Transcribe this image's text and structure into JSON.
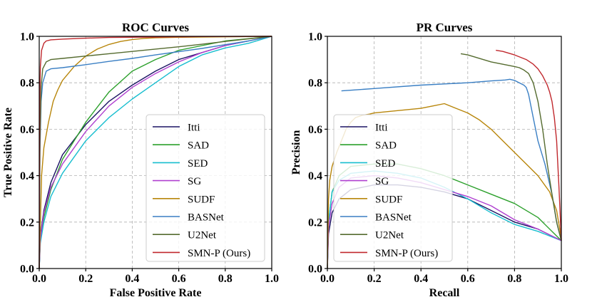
{
  "chart_data": [
    {
      "type": "line",
      "title": "ROC Curves",
      "xlabel": "False Positive Rate",
      "ylabel": "True Positive Rate",
      "xlim": [
        0,
        1
      ],
      "ylim": [
        0,
        1
      ],
      "xticks": [
        "0.0",
        "0.2",
        "0.4",
        "0.6",
        "0.8",
        "1.0"
      ],
      "yticks": [
        "0.0",
        "0.2",
        "0.4",
        "0.6",
        "0.8",
        "1.0"
      ],
      "grid": true,
      "legend_position": "lower-right",
      "series": [
        {
          "name": "Itti",
          "color": "#1b1464",
          "x": [
            0,
            0.005,
            0.02,
            0.05,
            0.1,
            0.2,
            0.3,
            0.4,
            0.5,
            0.6,
            0.7,
            0.8,
            0.9,
            1.0
          ],
          "y": [
            0,
            0.14,
            0.25,
            0.37,
            0.49,
            0.62,
            0.72,
            0.79,
            0.85,
            0.9,
            0.93,
            0.96,
            0.98,
            1.0
          ]
        },
        {
          "name": "SAD",
          "color": "#2ca02c",
          "x": [
            0,
            0.005,
            0.02,
            0.05,
            0.1,
            0.2,
            0.3,
            0.4,
            0.5,
            0.6,
            0.7,
            0.8,
            0.9,
            1.0
          ],
          "y": [
            0,
            0.13,
            0.22,
            0.34,
            0.47,
            0.63,
            0.76,
            0.85,
            0.9,
            0.94,
            0.96,
            0.98,
            0.99,
            1.0
          ]
        },
        {
          "name": "SED",
          "color": "#17becf",
          "x": [
            0,
            0.005,
            0.02,
            0.05,
            0.1,
            0.2,
            0.3,
            0.4,
            0.5,
            0.6,
            0.7,
            0.8,
            0.9,
            1.0
          ],
          "y": [
            0,
            0.11,
            0.2,
            0.31,
            0.41,
            0.55,
            0.65,
            0.73,
            0.8,
            0.87,
            0.92,
            0.95,
            0.97,
            1.0
          ]
        },
        {
          "name": "SG",
          "color": "#b040d0",
          "x": [
            0,
            0.005,
            0.02,
            0.05,
            0.1,
            0.2,
            0.3,
            0.4,
            0.5,
            0.6,
            0.7,
            0.8,
            0.9,
            1.0
          ],
          "y": [
            0,
            0.13,
            0.24,
            0.35,
            0.45,
            0.59,
            0.7,
            0.78,
            0.84,
            0.89,
            0.93,
            0.96,
            0.98,
            1.0
          ]
        },
        {
          "name": "SUDF",
          "color": "#b8860b",
          "x": [
            0,
            0.01,
            0.02,
            0.04,
            0.06,
            0.08,
            0.1,
            0.15,
            0.2,
            0.25,
            0.3,
            0.35,
            0.4,
            0.45,
            0.5,
            0.6,
            0.8,
            1.0
          ],
          "y": [
            0,
            0.4,
            0.52,
            0.63,
            0.72,
            0.77,
            0.81,
            0.87,
            0.915,
            0.945,
            0.965,
            0.978,
            0.986,
            0.991,
            0.994,
            0.996,
            0.998,
            1.0
          ]
        },
        {
          "name": "BASNet",
          "color": "#3a7fc4",
          "x": [
            0,
            0.003,
            0.008,
            0.015,
            0.03,
            0.05,
            0.1,
            0.2,
            0.3,
            0.4,
            0.5,
            0.6,
            0.7,
            0.8,
            0.9,
            1.0
          ],
          "y": [
            0,
            0.5,
            0.72,
            0.8,
            0.85,
            0.86,
            0.865,
            0.878,
            0.892,
            0.905,
            0.92,
            0.934,
            0.948,
            0.964,
            0.98,
            1.0
          ]
        },
        {
          "name": "U2Net",
          "color": "#556b2f",
          "x": [
            0,
            0.003,
            0.008,
            0.015,
            0.03,
            0.05,
            0.1,
            0.2,
            0.3,
            0.4,
            0.5,
            0.6,
            0.7,
            0.8,
            0.9,
            1.0
          ],
          "y": [
            0,
            0.55,
            0.78,
            0.86,
            0.89,
            0.9,
            0.905,
            0.915,
            0.925,
            0.935,
            0.945,
            0.955,
            0.966,
            0.978,
            0.989,
            1.0
          ]
        },
        {
          "name": "SMN-P (Ours)",
          "color": "#c0282d",
          "x": [
            0,
            0.002,
            0.005,
            0.01,
            0.02,
            0.03,
            0.05,
            0.1,
            0.2,
            0.3,
            0.5,
            0.7,
            1.0
          ],
          "y": [
            0,
            0.72,
            0.87,
            0.94,
            0.97,
            0.98,
            0.985,
            0.988,
            0.992,
            0.995,
            0.997,
            0.999,
            1.0
          ]
        }
      ]
    },
    {
      "type": "line",
      "title": "PR Curves",
      "xlabel": "Recall",
      "ylabel": "Precision",
      "xlim": [
        0,
        1
      ],
      "ylim": [
        0,
        1
      ],
      "xticks": [
        "0.0",
        "0.2",
        "0.4",
        "0.6",
        "0.8",
        "1.0"
      ],
      "yticks": [
        "0.0",
        "0.2",
        "0.4",
        "0.6",
        "0.8",
        "1.0"
      ],
      "grid": true,
      "legend_position": "lower-left",
      "series": [
        {
          "name": "Itti",
          "color": "#1b1464",
          "x": [
            0.0,
            0.005,
            0.02,
            0.05,
            0.1,
            0.2,
            0.3,
            0.4,
            0.5,
            0.6,
            0.7,
            0.8,
            0.9,
            1.0
          ],
          "y": [
            0.0,
            0.15,
            0.24,
            0.3,
            0.34,
            0.36,
            0.36,
            0.35,
            0.33,
            0.3,
            0.25,
            0.2,
            0.17,
            0.12
          ]
        },
        {
          "name": "SAD",
          "color": "#2ca02c",
          "x": [
            0.0,
            0.005,
            0.02,
            0.05,
            0.1,
            0.2,
            0.3,
            0.4,
            0.5,
            0.6,
            0.7,
            0.8,
            0.9,
            1.0
          ],
          "y": [
            0.0,
            0.2,
            0.33,
            0.4,
            0.44,
            0.45,
            0.45,
            0.43,
            0.4,
            0.36,
            0.32,
            0.28,
            0.22,
            0.12
          ]
        },
        {
          "name": "SED",
          "color": "#17becf",
          "x": [
            0.0,
            0.005,
            0.02,
            0.05,
            0.1,
            0.2,
            0.3,
            0.4,
            0.5,
            0.6,
            0.7,
            0.8,
            0.9,
            1.0
          ],
          "y": [
            0.0,
            0.2,
            0.33,
            0.38,
            0.41,
            0.42,
            0.41,
            0.39,
            0.35,
            0.3,
            0.24,
            0.19,
            0.16,
            0.12
          ]
        },
        {
          "name": "SG",
          "color": "#b040d0",
          "x": [
            0.0,
            0.005,
            0.02,
            0.05,
            0.1,
            0.2,
            0.3,
            0.4,
            0.5,
            0.6,
            0.7,
            0.8,
            0.9,
            1.0
          ],
          "y": [
            0.0,
            0.18,
            0.28,
            0.35,
            0.39,
            0.4,
            0.39,
            0.37,
            0.34,
            0.31,
            0.27,
            0.21,
            0.17,
            0.12
          ]
        },
        {
          "name": "SUDF",
          "color": "#b8860b",
          "x": [
            0.0,
            0.005,
            0.01,
            0.02,
            0.04,
            0.06,
            0.08,
            0.1,
            0.12,
            0.15,
            0.18,
            0.2,
            0.25,
            0.3,
            0.35,
            0.4,
            0.45,
            0.5,
            0.55,
            0.6,
            0.65,
            0.7,
            0.75,
            0.8,
            0.85,
            0.9,
            0.95,
            0.98,
            1.0
          ],
          "y": [
            0.0,
            0.3,
            0.38,
            0.44,
            0.5,
            0.55,
            0.6,
            0.63,
            0.65,
            0.66,
            0.665,
            0.67,
            0.675,
            0.68,
            0.685,
            0.69,
            0.7,
            0.71,
            0.69,
            0.67,
            0.64,
            0.6,
            0.55,
            0.5,
            0.45,
            0.4,
            0.33,
            0.25,
            0.13
          ]
        },
        {
          "name": "BASNet",
          "color": "#3a7fc4",
          "x": [
            0.06,
            0.2,
            0.4,
            0.6,
            0.7,
            0.76,
            0.78,
            0.8,
            0.82,
            0.84,
            0.85,
            0.86,
            0.88,
            0.9,
            0.93,
            0.96,
            0.98,
            1.0
          ],
          "y": [
            0.765,
            0.775,
            0.79,
            0.8,
            0.808,
            0.812,
            0.815,
            0.81,
            0.8,
            0.79,
            0.78,
            0.75,
            0.65,
            0.55,
            0.45,
            0.32,
            0.2,
            0.12
          ]
        },
        {
          "name": "U2Net",
          "color": "#556b2f",
          "x": [
            0.57,
            0.6,
            0.7,
            0.8,
            0.82,
            0.84,
            0.86,
            0.88,
            0.9,
            0.92,
            0.94,
            0.96,
            0.98,
            1.0
          ],
          "y": [
            0.925,
            0.92,
            0.89,
            0.87,
            0.865,
            0.855,
            0.84,
            0.8,
            0.72,
            0.6,
            0.45,
            0.32,
            0.2,
            0.12
          ]
        },
        {
          "name": "SMN-P (Ours)",
          "color": "#c0282d",
          "x": [
            0.72,
            0.75,
            0.8,
            0.85,
            0.88,
            0.9,
            0.92,
            0.94,
            0.95,
            0.96,
            0.97,
            0.98,
            0.99,
            1.0
          ],
          "y": [
            0.94,
            0.935,
            0.92,
            0.9,
            0.88,
            0.86,
            0.83,
            0.79,
            0.76,
            0.72,
            0.65,
            0.55,
            0.35,
            0.12
          ]
        }
      ]
    }
  ]
}
